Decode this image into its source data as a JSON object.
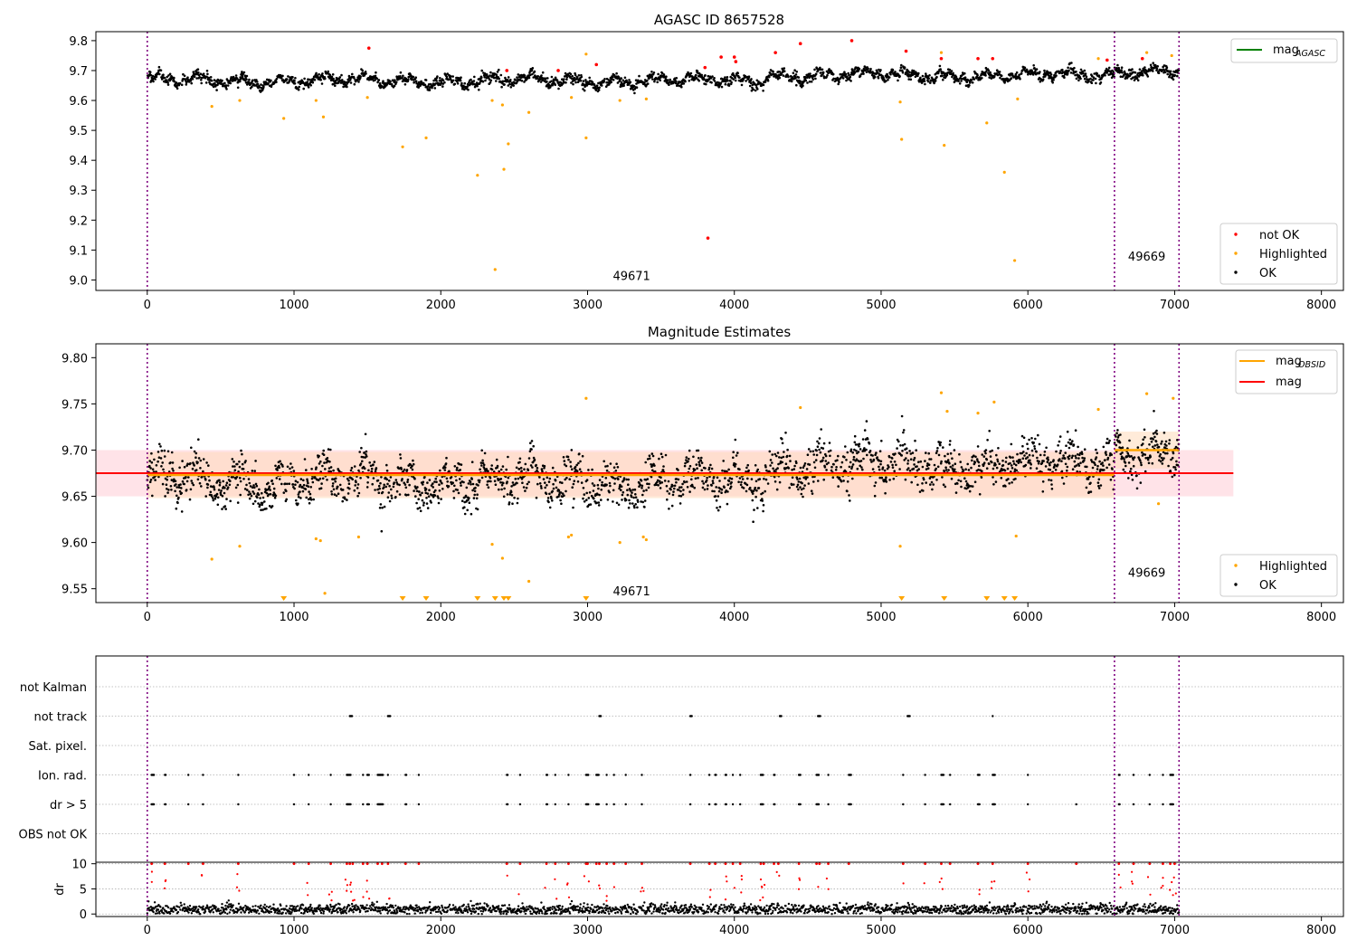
{
  "figure": {
    "panel1_title": "AGASC ID 8657528",
    "panel2_title": "Magnitude Estimates"
  },
  "colors": {
    "ok": "#000000",
    "highlighted": "#ffa500",
    "not_ok": "#ff0000",
    "mag_agasc": "#008000",
    "mag_obsid": "#ffa500",
    "mag": "#ff0000",
    "obs_separator": "#800080",
    "band_mag": "#ffc0cb",
    "band_obsid": "#ffdab9",
    "grid": "#b0b0b0"
  },
  "chart_data": [
    {
      "type": "scatter",
      "title": "AGASC ID 8657528",
      "xlim": [
        -350,
        8150
      ],
      "ylim": [
        8.965,
        9.83
      ],
      "xticks": [
        0,
        1000,
        2000,
        3000,
        4000,
        5000,
        6000,
        7000,
        8000
      ],
      "yticks": [
        9.0,
        9.1,
        9.2,
        9.3,
        9.4,
        9.5,
        9.6,
        9.7,
        9.8
      ],
      "ytick_labels": [
        "9.0",
        "9.1",
        "9.2",
        "9.3",
        "9.4",
        "9.5",
        "9.6",
        "9.7",
        "9.8"
      ],
      "obs_boundaries": [
        0,
        6590,
        7030
      ],
      "obs_labels": [
        {
          "text": "49671",
          "x": 3300,
          "y": 9.0
        },
        {
          "text": "49669",
          "x": 6810,
          "y": 9.065
        }
      ],
      "legend_top": {
        "placement": "upper right",
        "entries": [
          {
            "main": "mag",
            "sub": "AGASC",
            "color": "#008000"
          }
        ]
      },
      "legend_bottom": {
        "placement": "lower right",
        "entries": [
          "not OK",
          "Highlighted",
          "OK"
        ]
      },
      "band": {
        "y_min": 9.64,
        "y_max": 9.72
      },
      "highlighted": [
        [
          440,
          9.58
        ],
        [
          630,
          9.6
        ],
        [
          930,
          9.54
        ],
        [
          1150,
          9.6
        ],
        [
          1200,
          9.545
        ],
        [
          1500,
          9.61
        ],
        [
          1740,
          9.445
        ],
        [
          1900,
          9.475
        ],
        [
          2250,
          9.35
        ],
        [
          2350,
          9.6
        ],
        [
          2370,
          9.035
        ],
        [
          2420,
          9.585
        ],
        [
          2430,
          9.37
        ],
        [
          2460,
          9.455
        ],
        [
          2600,
          9.56
        ],
        [
          2890,
          9.61
        ],
        [
          2990,
          9.475
        ],
        [
          3400,
          9.605
        ],
        [
          3220,
          9.6
        ],
        [
          5130,
          9.595
        ],
        [
          5140,
          9.47
        ],
        [
          5430,
          9.45
        ],
        [
          5720,
          9.525
        ],
        [
          5840,
          9.36
        ],
        [
          5910,
          9.065
        ],
        [
          5930,
          9.605
        ],
        [
          2990,
          9.755
        ],
        [
          5410,
          9.76
        ],
        [
          6480,
          9.74
        ],
        [
          6810,
          9.76
        ],
        [
          6980,
          9.75
        ]
      ],
      "not_ok": [
        [
          1510,
          9.775
        ],
        [
          2450,
          9.7
        ],
        [
          2800,
          9.7
        ],
        [
          3060,
          9.72
        ],
        [
          3800,
          9.71
        ],
        [
          3820,
          9.14
        ],
        [
          3910,
          9.745
        ],
        [
          4000,
          9.745
        ],
        [
          4010,
          9.73
        ],
        [
          4280,
          9.76
        ],
        [
          4450,
          9.79
        ],
        [
          4800,
          9.8
        ],
        [
          5170,
          9.765
        ],
        [
          5410,
          9.74
        ],
        [
          5660,
          9.74
        ],
        [
          5760,
          9.74
        ],
        [
          6540,
          9.735
        ],
        [
          6780,
          9.74
        ]
      ]
    },
    {
      "type": "scatter",
      "title": "Magnitude Estimates",
      "xlim": [
        -350,
        8150
      ],
      "ylim": [
        9.535,
        9.815
      ],
      "xticks": [
        0,
        1000,
        2000,
        3000,
        4000,
        5000,
        6000,
        7000,
        8000
      ],
      "yticks": [
        9.55,
        9.6,
        9.65,
        9.7,
        9.75,
        9.8
      ],
      "ytick_labels": [
        "9.55",
        "9.60",
        "9.65",
        "9.70",
        "9.75",
        "9.80"
      ],
      "obs_boundaries": [
        0,
        6590,
        7030
      ],
      "obs_labels": [
        {
          "text": "49671",
          "x": 3300,
          "y": 9.543
        },
        {
          "text": "49669",
          "x": 6810,
          "y": 9.563
        }
      ],
      "legend_top": {
        "placement": "upper right",
        "entries": [
          {
            "main": "mag",
            "sub": "OBSID",
            "color": "#ffa500"
          },
          {
            "main": "mag",
            "sub": "",
            "color": "#ff0000"
          }
        ]
      },
      "legend_bottom": {
        "placement": "lower right",
        "entries": [
          "Highlighted",
          "OK"
        ]
      },
      "mag": {
        "value": 9.675,
        "band": [
          9.65,
          9.7
        ],
        "x_range": [
          -350,
          7400
        ]
      },
      "mag_obsid": [
        {
          "value": 9.673,
          "band": [
            9.648,
            9.698
          ],
          "x_range": [
            0,
            6590
          ]
        },
        {
          "value": 9.7,
          "band": [
            9.68,
            9.72
          ],
          "x_range": [
            6590,
            7030
          ]
        }
      ],
      "band": {
        "y_min": 9.64,
        "y_max": 9.72
      },
      "highlighted": [
        [
          440,
          9.582
        ],
        [
          630,
          9.596
        ],
        [
          1150,
          9.604
        ],
        [
          1180,
          9.602
        ],
        [
          1210,
          9.545
        ],
        [
          1440,
          9.606
        ],
        [
          2350,
          9.598
        ],
        [
          2420,
          9.583
        ],
        [
          2600,
          9.558
        ],
        [
          2870,
          9.606
        ],
        [
          2890,
          9.608
        ],
        [
          3220,
          9.6
        ],
        [
          3380,
          9.606
        ],
        [
          3400,
          9.603
        ],
        [
          5130,
          9.596
        ],
        [
          5920,
          9.607
        ],
        [
          2990,
          9.756
        ],
        [
          4450,
          9.746
        ],
        [
          5410,
          9.762
        ],
        [
          5450,
          9.742
        ],
        [
          5660,
          9.74
        ],
        [
          5770,
          9.752
        ],
        [
          6480,
          9.744
        ],
        [
          6810,
          9.761
        ],
        [
          6890,
          9.642
        ],
        [
          6990,
          9.756
        ]
      ],
      "clipped_below": [
        930,
        1740,
        1900,
        2250,
        2370,
        2430,
        2460,
        2990,
        5140,
        5430,
        5720,
        5840,
        5910
      ]
    },
    {
      "type": "scatter",
      "title": "",
      "xlim": [
        -350,
        8150
      ],
      "xticks": [
        0,
        1000,
        2000,
        3000,
        4000,
        5000,
        6000,
        7000,
        8000
      ],
      "obs_boundaries": [
        0,
        6590,
        7030
      ],
      "flag_rows": [
        "not Kalman",
        "not track",
        "Sat. pixel.",
        "Ion. rad.",
        "dr > 5",
        "OBS not OK"
      ],
      "flag_events": {
        "not track": [
          [
            1380,
            20
          ],
          [
            1640,
            20
          ],
          [
            3080,
            15
          ],
          [
            3700,
            15
          ],
          [
            4310,
            15
          ],
          [
            4570,
            20
          ],
          [
            5180,
            20
          ],
          [
            5760,
            2
          ]
        ],
        "Ion. rad.": [
          [
            30,
            20
          ],
          [
            120,
            10
          ],
          [
            280,
            5
          ],
          [
            380,
            5
          ],
          [
            620,
            5
          ],
          [
            1000,
            5
          ],
          [
            1100,
            5
          ],
          [
            1250,
            5
          ],
          [
            1360,
            30
          ],
          [
            1470,
            5
          ],
          [
            1500,
            15
          ],
          [
            1570,
            40
          ],
          [
            1640,
            5
          ],
          [
            1760,
            10
          ],
          [
            1850,
            5
          ],
          [
            2450,
            10
          ],
          [
            2540,
            5
          ],
          [
            2720,
            10
          ],
          [
            2780,
            5
          ],
          [
            2870,
            5
          ],
          [
            2990,
            20
          ],
          [
            3060,
            20
          ],
          [
            3130,
            5
          ],
          [
            3180,
            5
          ],
          [
            3260,
            5
          ],
          [
            3370,
            5
          ],
          [
            3700,
            5
          ],
          [
            3830,
            5
          ],
          [
            3870,
            10
          ],
          [
            3940,
            10
          ],
          [
            3990,
            5
          ],
          [
            4040,
            5
          ],
          [
            4180,
            20
          ],
          [
            4270,
            10
          ],
          [
            4440,
            15
          ],
          [
            4560,
            20
          ],
          [
            4640,
            5
          ],
          [
            4780,
            20
          ],
          [
            5150,
            5
          ],
          [
            5300,
            5
          ],
          [
            5410,
            20
          ],
          [
            5470,
            5
          ],
          [
            5660,
            15
          ],
          [
            5760,
            20
          ],
          [
            6000,
            5
          ],
          [
            6620,
            10
          ],
          [
            6720,
            5
          ],
          [
            6830,
            5
          ],
          [
            6920,
            5
          ],
          [
            6970,
            25
          ]
        ],
        "dr > 5": [
          [
            30,
            20
          ],
          [
            120,
            10
          ],
          [
            280,
            5
          ],
          [
            380,
            5
          ],
          [
            620,
            5
          ],
          [
            1000,
            5
          ],
          [
            1100,
            5
          ],
          [
            1250,
            5
          ],
          [
            1360,
            30
          ],
          [
            1470,
            5
          ],
          [
            1500,
            15
          ],
          [
            1570,
            40
          ],
          [
            1760,
            10
          ],
          [
            1850,
            5
          ],
          [
            2450,
            10
          ],
          [
            2540,
            5
          ],
          [
            2720,
            10
          ],
          [
            2780,
            5
          ],
          [
            2870,
            5
          ],
          [
            2990,
            20
          ],
          [
            3060,
            20
          ],
          [
            3130,
            5
          ],
          [
            3180,
            5
          ],
          [
            3260,
            5
          ],
          [
            3370,
            5
          ],
          [
            3700,
            5
          ],
          [
            3830,
            5
          ],
          [
            3870,
            10
          ],
          [
            3940,
            10
          ],
          [
            3990,
            5
          ],
          [
            4040,
            5
          ],
          [
            4180,
            20
          ],
          [
            4270,
            10
          ],
          [
            4440,
            15
          ],
          [
            4560,
            20
          ],
          [
            4640,
            5
          ],
          [
            4780,
            20
          ],
          [
            5150,
            5
          ],
          [
            5300,
            5
          ],
          [
            5410,
            20
          ],
          [
            5470,
            5
          ],
          [
            5660,
            15
          ],
          [
            5760,
            20
          ],
          [
            6000,
            5
          ],
          [
            6330,
            5
          ],
          [
            6620,
            10
          ],
          [
            6720,
            5
          ],
          [
            6830,
            5
          ],
          [
            6920,
            5
          ],
          [
            6970,
            25
          ]
        ]
      },
      "dr_axis": {
        "ylabel": "dr",
        "ylim": [
          -0.5,
          10.3
        ],
        "yticks": [
          0,
          5,
          10
        ],
        "ytick_labels": [
          "0",
          "5",
          "10"
        ]
      },
      "dr_outliers_x": [
        30,
        120,
        280,
        380,
        620,
        1000,
        1100,
        1250,
        1360,
        1380,
        1400,
        1470,
        1500,
        1570,
        1600,
        1640,
        1760,
        1850,
        2450,
        2540,
        2720,
        2780,
        2870,
        2990,
        3000,
        3060,
        3080,
        3130,
        3180,
        3260,
        3370,
        3700,
        3830,
        3870,
        3940,
        3990,
        4040,
        4180,
        4200,
        4270,
        4300,
        4440,
        4560,
        4580,
        4640,
        4780,
        5150,
        5300,
        5410,
        5470,
        5660,
        5760,
        6000,
        6330,
        6620,
        6720,
        6830,
        6920,
        6970,
        7000
      ]
    }
  ]
}
